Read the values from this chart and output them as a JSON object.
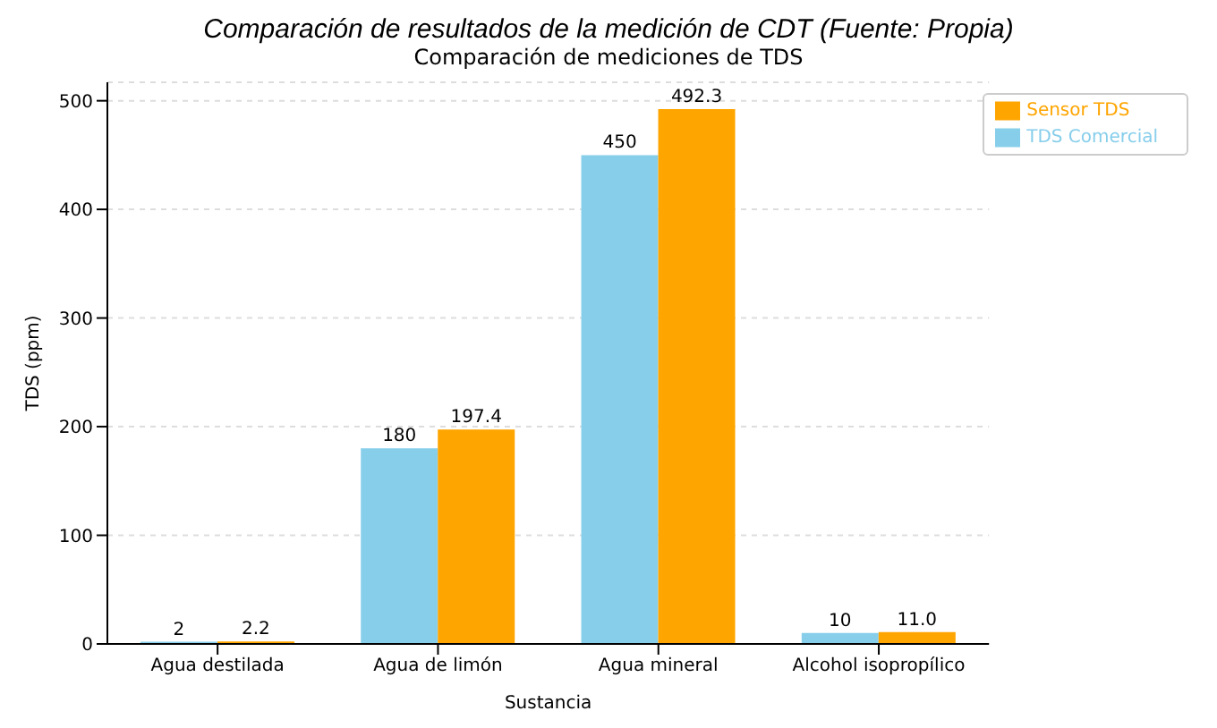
{
  "chart_data": {
    "type": "bar",
    "title": "Comparación de mediciones de TDS",
    "annotations": [
      "Comparación de resultados de la medición de CDT (Fuente: Propia)"
    ],
    "xlabel": "Sustancia",
    "ylabel": "TDS (ppm)",
    "categories": [
      "Agua destilada",
      "Agua de limón",
      "Agua mineral",
      "Alcohol isopropílico"
    ],
    "series": [
      {
        "name": "TDS Comercial",
        "color": "#87ceeb",
        "values": [
          2,
          180,
          450,
          10
        ],
        "value_labels": [
          "2",
          "180",
          "450",
          "10"
        ]
      },
      {
        "name": "Sensor TDS",
        "color": "#ffa500",
        "values": [
          2.2,
          197.4,
          492.3,
          11.0
        ],
        "value_labels": [
          "2.2",
          "197.4",
          "492.3",
          "11.0"
        ]
      }
    ],
    "ylim": [
      0,
      517
    ],
    "yticks": [
      0,
      100,
      200,
      300,
      400,
      500
    ],
    "grid": "y",
    "legend": "top right"
  }
}
